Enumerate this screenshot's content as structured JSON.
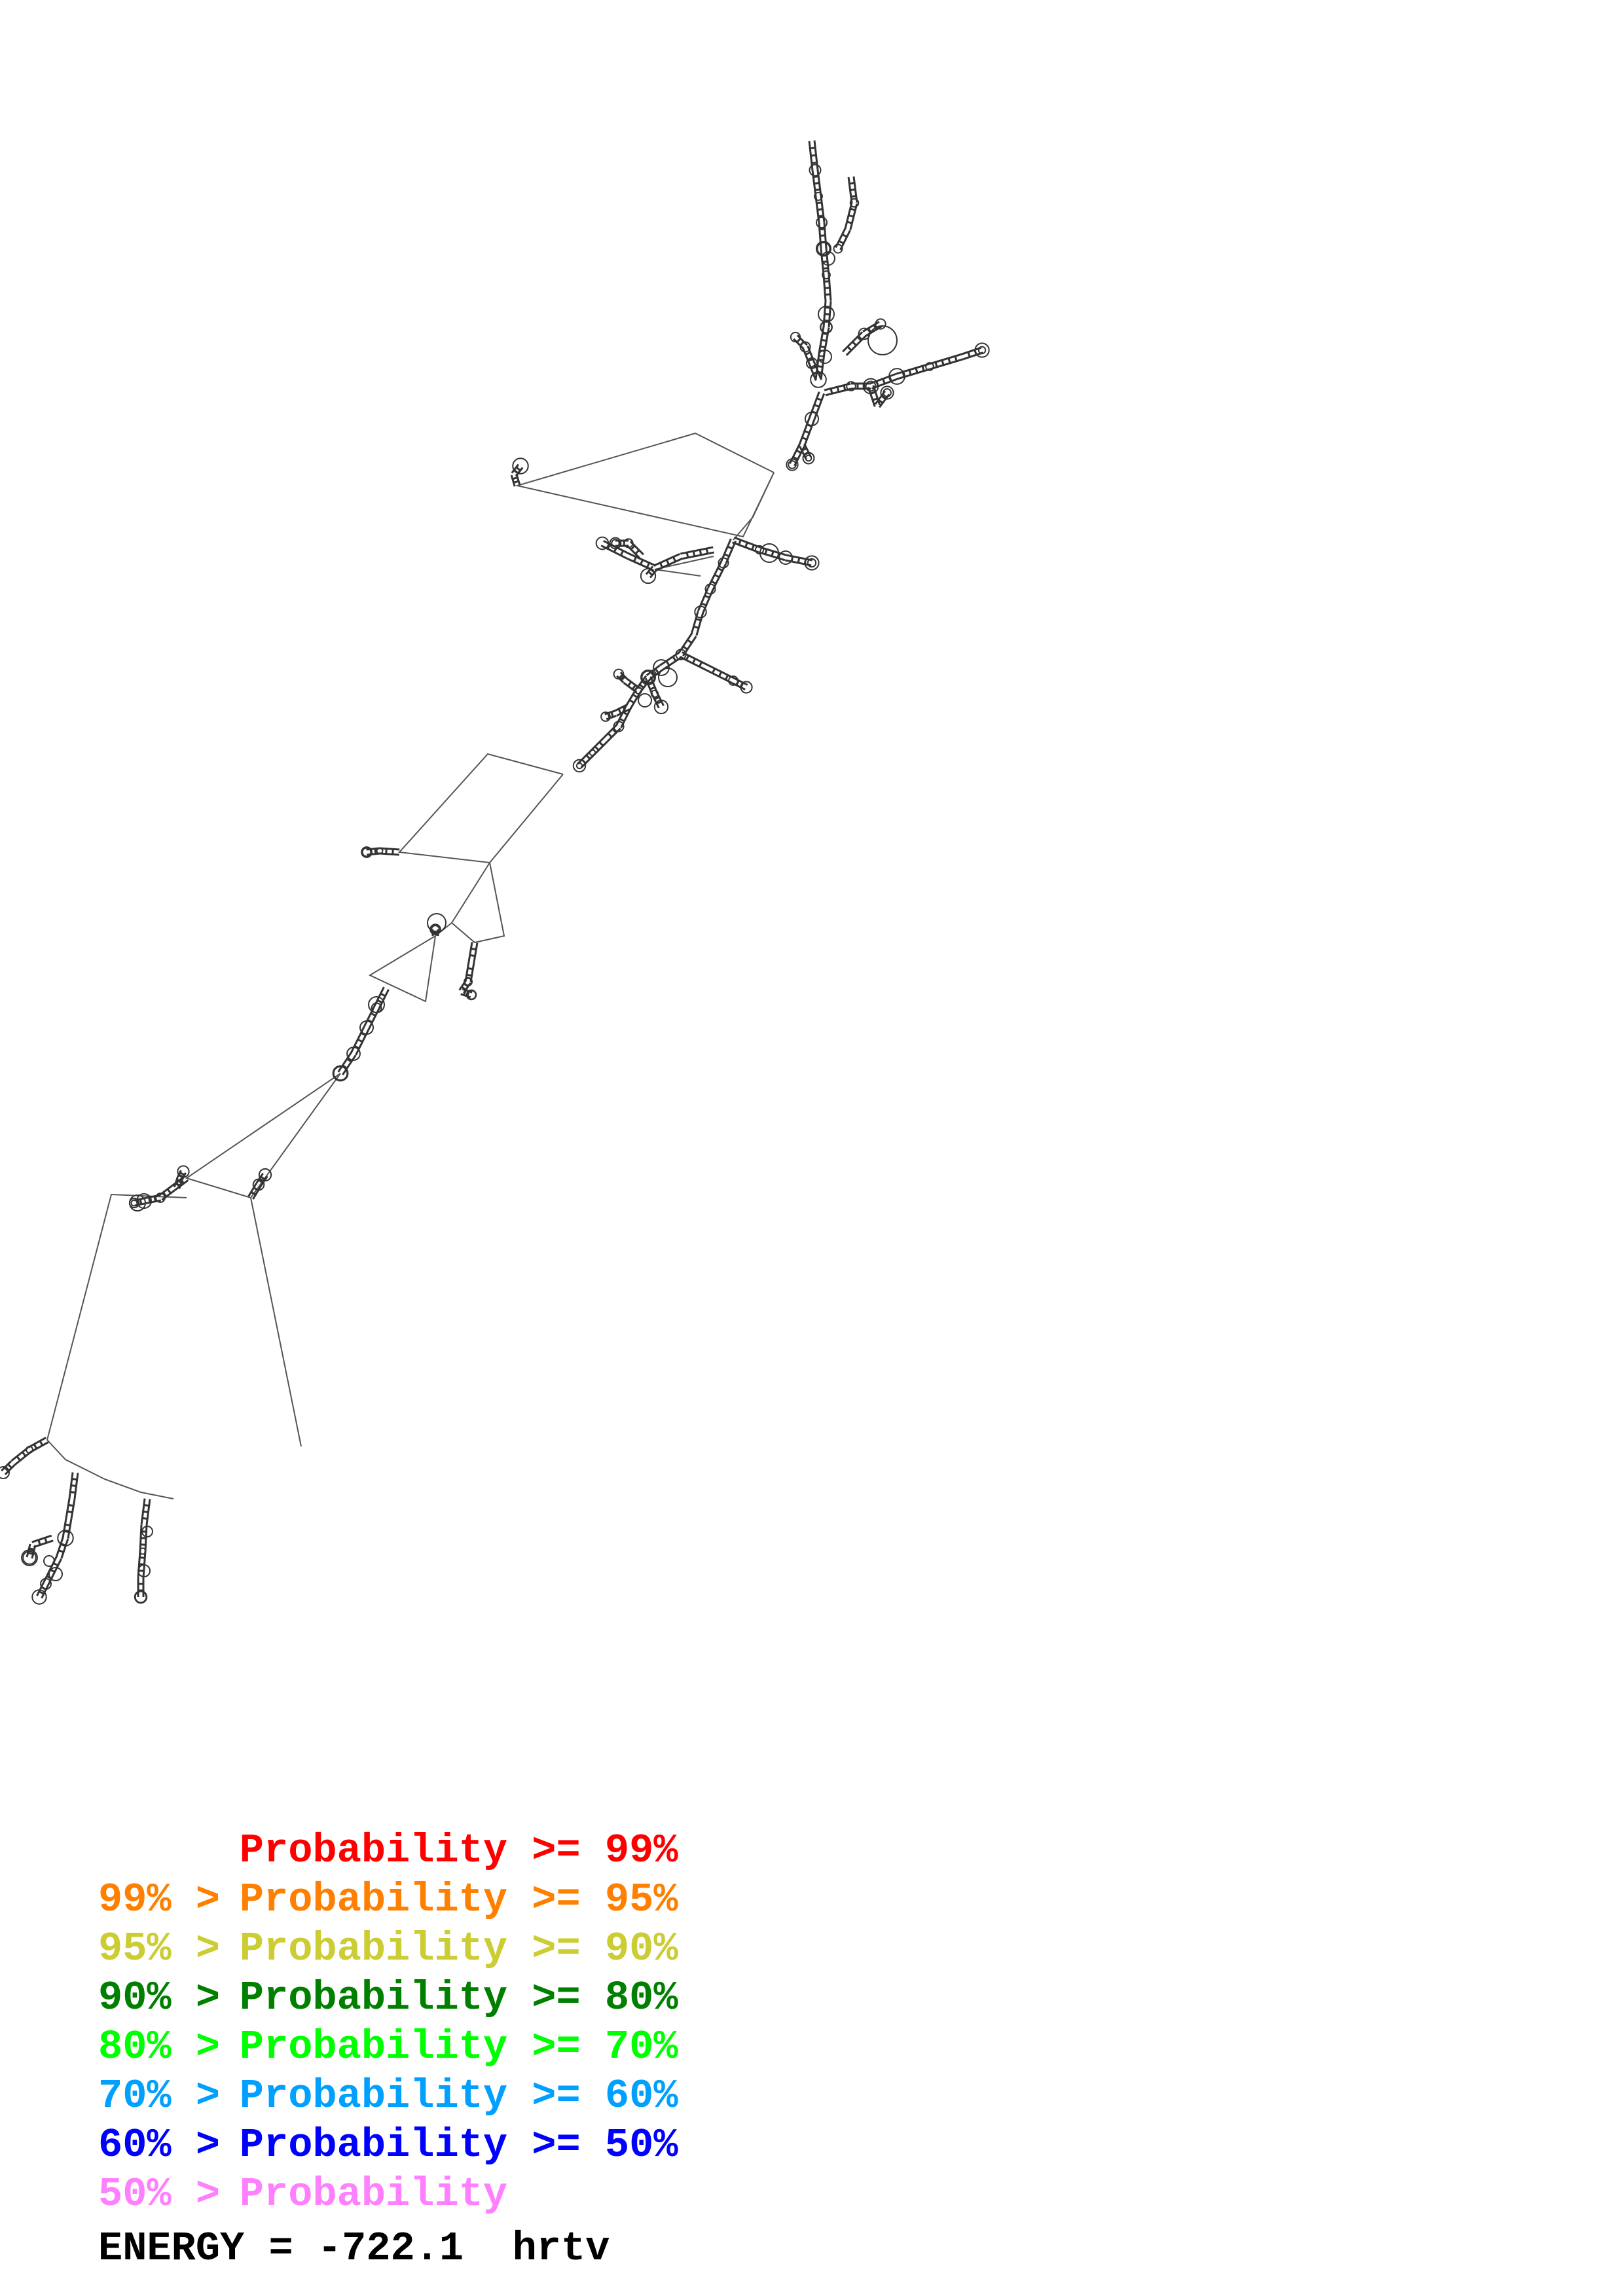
{
  "legend": {
    "rows": [
      {
        "lead": "",
        "label": "Probability",
        "trail": ">= 99%",
        "color": "#ff0000"
      },
      {
        "lead": "99% >",
        "label": "Probability",
        "trail": ">= 95%",
        "color": "#ff7f00"
      },
      {
        "lead": "95% >",
        "label": "Probability",
        "trail": ">= 90%",
        "color": "#cccc33"
      },
      {
        "lead": "90% >",
        "label": "Probability",
        "trail": ">= 80%",
        "color": "#007f00"
      },
      {
        "lead": "80% >",
        "label": "Probability",
        "trail": ">= 70%",
        "color": "#00ff00"
      },
      {
        "lead": "70% >",
        "label": "Probability",
        "trail": ">= 60%",
        "color": "#00a0ff"
      },
      {
        "lead": "60% >",
        "label": "Probability",
        "trail": ">= 50%",
        "color": "#0000ff"
      },
      {
        "lead": "50% >",
        "label": "Probability",
        "trail": "",
        "color": "#ff80ff"
      }
    ]
  },
  "energy": {
    "label": "ENERGY",
    "equals": "=",
    "value": "-722.1",
    "name": "hrtv"
  },
  "structure": {
    "stroke_color": "#555555",
    "loop_color": "#333333"
  }
}
